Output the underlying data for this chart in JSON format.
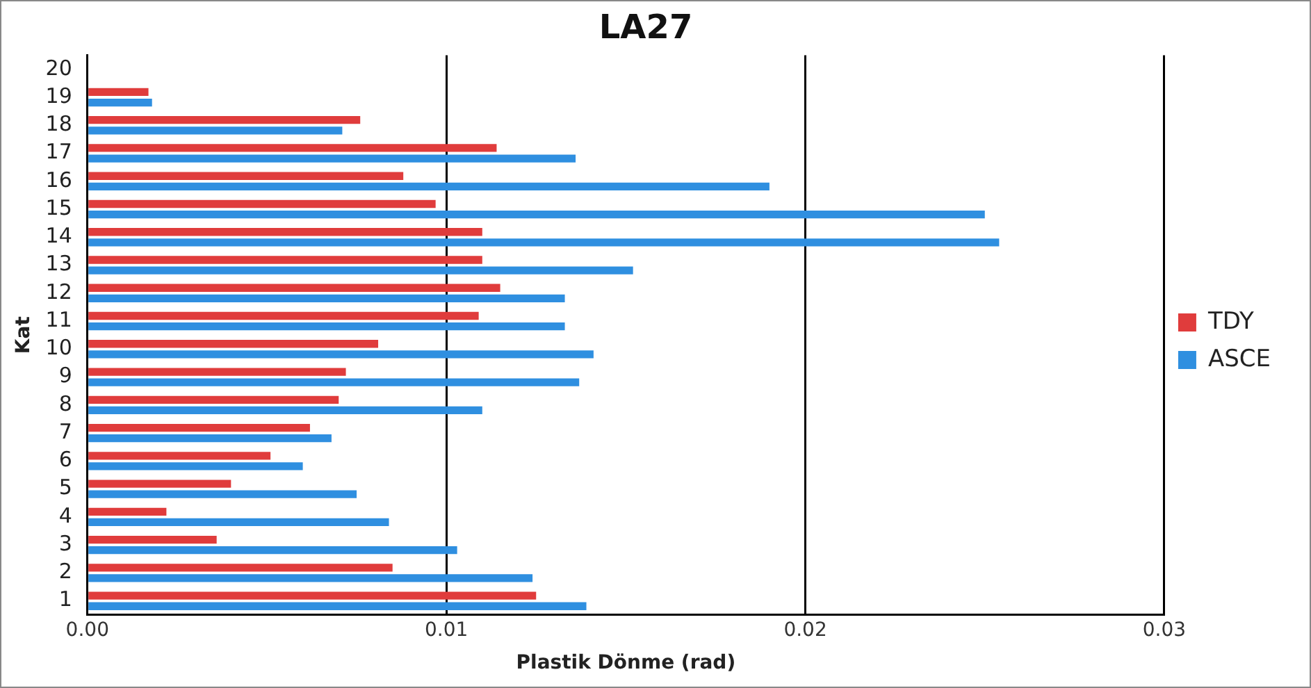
{
  "chart_data": {
    "type": "bar",
    "orientation": "horizontal",
    "title": "LA27",
    "xlabel": "Plastik Dönme (rad)",
    "ylabel": "Kat",
    "categories": [
      "20",
      "19",
      "18",
      "17",
      "16",
      "15",
      "14",
      "13",
      "12",
      "11",
      "10",
      "9",
      "8",
      "7",
      "6",
      "5",
      "4",
      "3",
      "2",
      "1"
    ],
    "series": [
      {
        "name": "TDY",
        "color": "#e03c3c",
        "values": [
          null,
          0.0017,
          0.0076,
          0.0114,
          0.0088,
          0.0097,
          0.011,
          0.011,
          0.0115,
          0.0109,
          0.0081,
          0.0072,
          0.007,
          0.0062,
          0.0051,
          0.004,
          0.0022,
          0.0036,
          0.0085,
          0.0125
        ]
      },
      {
        "name": "ASCE",
        "color": "#2f8fe0",
        "values": [
          null,
          0.0018,
          0.0071,
          0.0136,
          0.019,
          0.025,
          0.0254,
          0.0152,
          0.0133,
          0.0133,
          0.0141,
          0.0137,
          0.011,
          0.0068,
          0.006,
          0.0075,
          0.0084,
          0.0103,
          0.0124,
          0.0139
        ]
      }
    ],
    "xlim": [
      0,
      0.03
    ],
    "xticks": [
      {
        "value": 0,
        "label": "0.00"
      },
      {
        "value": 0.01,
        "label": "0.01"
      },
      {
        "value": 0.02,
        "label": "0.02"
      },
      {
        "value": 0.03,
        "label": "0.03"
      }
    ],
    "grid": "x",
    "legend": "right"
  }
}
